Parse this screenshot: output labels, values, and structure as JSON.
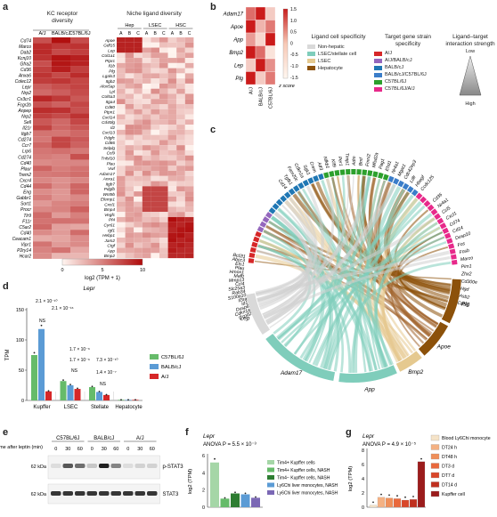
{
  "panel_a": {
    "letter": "a",
    "kc_title": "KC receptor diversity",
    "kc_strains": [
      "A/J",
      "BALB/cJ",
      "C57BL/6J"
    ],
    "kc_genes": [
      "Cd74",
      "Marco",
      "Dab2",
      "Kcnj10",
      "Gfra2",
      "Cd36",
      "Anxa6",
      "Colec12",
      "Lepr",
      "Nrp2",
      "Cx3cr1",
      "Fcgr2b",
      "Anpep",
      "Nrp2",
      "Sell",
      "Il21r",
      "Itgb7",
      "Cd274",
      "Ccr7",
      "Lrp6",
      "Cd274",
      "Cd40",
      "Plaur",
      "Trem2",
      "Cxcr4",
      "Cd44",
      "Eng",
      "Gabbr1",
      "Sort1",
      "Procr",
      "Tlr9",
      "F11r",
      "C5ar2",
      "Cd40",
      "Ceacam1",
      "Vipr1",
      "P2ry14",
      "Hcar2"
    ],
    "niche_title": "Niche ligand diversity",
    "niche_groups": [
      "Hep",
      "LSEC",
      "HSC"
    ],
    "niche_sub": [
      "A",
      "B",
      "C",
      "A",
      "B",
      "C",
      "A",
      "B",
      "C"
    ],
    "niche_genes": [
      "Apoe",
      "Gdf15",
      "Lep",
      "Col1a1",
      "Ptprc",
      "Il1b",
      "Plg",
      "Lgals3",
      "Itgb2",
      "Alox5ap",
      "Lpl",
      "Col5a3",
      "Itga4",
      "Cd80",
      "Ptpn1",
      "Cxcl14",
      "Cd40lg",
      "Il2",
      "Cxcl13",
      "Pdgfc",
      "Cd86",
      "Selplg",
      "Ccl9",
      "Tnfsf10",
      "Plau",
      "Vwf",
      "Adam17",
      "Anxa1",
      "Itgb7",
      "Pdgfb",
      "Wnt9b",
      "Efemp1",
      "Cxcl1",
      "Bmp4",
      "Vegfc",
      "Pf4",
      "Cyr61",
      "Igf1",
      "Hebp1",
      "Jam2",
      "Ctgf",
      "App",
      "Bmp2"
    ],
    "scale_ticks": [
      "0",
      "5",
      "10"
    ],
    "scale_label": "log2 (TPM + 1)"
  },
  "panel_b": {
    "letter": "b",
    "genes": [
      "Adam17",
      "Apoe",
      "App",
      "Bmp2",
      "Lep",
      "Plg"
    ],
    "strains": [
      "A/J",
      "BALB/cJ",
      "C57BL/6J"
    ],
    "colorbar_ticks": [
      "1.5",
      "1.0",
      "0.5",
      "0",
      "-0.5",
      "-1.0",
      "-1.5"
    ],
    "colorbar_label": "z score"
  },
  "legend_c": {
    "ligand_title": "Ligand cell specificity",
    "ligand_items": [
      {
        "label": "Non-hepatic",
        "color": "#d9d9d9"
      },
      {
        "label": "LSEC/stellate cell",
        "color": "#7fcdbb"
      },
      {
        "label": "LSEC",
        "color": "#e5c98f"
      },
      {
        "label": "Hepatocyte",
        "color": "#8c510a"
      }
    ],
    "target_title": "Target gene strain specificity",
    "target_items": [
      {
        "label": "A/J",
        "color": "#d62728"
      },
      {
        "label": "A/J/BALB/cJ",
        "color": "#9467bd"
      },
      {
        "label": "BALB/cJ",
        "color": "#1f77b4"
      },
      {
        "label": "BALB/cJ/C57BL/6J",
        "color": "#3a7dc9"
      },
      {
        "label": "C57BL/6J",
        "color": "#2ca02c"
      },
      {
        "label": "C57BL/6J/A/J",
        "color": "#e7298a"
      }
    ],
    "strength_title": "Ligand–target interaction strength",
    "strength_low": "Low",
    "strength_high": "High"
  },
  "panel_c": {
    "letter": "c",
    "ligands": [
      "Lep",
      "Adam17",
      "App",
      "Bmp2",
      "Apoe",
      "Plg"
    ],
    "targets_top": [
      "Cd14",
      "Tgfb1",
      "Fam20c",
      "Cdkn1a",
      "Sgk1",
      "Crem",
      "Atf3",
      "Nfkb1",
      "Klf9",
      "Per1",
      "Timp1",
      "Adm",
      "Bmf",
      "Fmnl2",
      "Mfsd2a",
      "Pag1",
      "Ehd1",
      "Nr4a1",
      "Mgat1",
      "Cdc42ep3",
      "Ldlr",
      "Hbegf",
      "Ccdc125"
    ],
    "targets_left": [
      "Bcl2l1",
      "Abcc3",
      "Ets1",
      "Plau",
      "Hmox1",
      "Mafb",
      "Mmp13",
      "Ccl4",
      "Slc25a3",
      "Rab34",
      "S100a10",
      "Il3ra",
      "Id1",
      "Dusp6",
      "Cdkn1a",
      "Ccnd2"
    ],
    "targets_right": [
      "Cd36",
      "Nr4a1",
      "Ccl5",
      "Cxcl1",
      "Cd74",
      "Cd14",
      "Dusp10",
      "Fos",
      "Fosb",
      "Marco",
      "Pim1",
      "Zhx2",
      "Cd300e",
      "Hgd",
      "Asb2",
      "Cd55"
    ]
  },
  "panel_d": {
    "letter": "d",
    "gene": "Lepr",
    "ylabel": "TPM",
    "yticks": [
      "0",
      "50",
      "100",
      "150"
    ],
    "categories": [
      "Kupffer",
      "LSEC",
      "Stellate",
      "Hepatocyte"
    ],
    "pvalues": [
      "2.1 × 10⁻¹⁰",
      "2.1 × 10⁻¹⁶",
      "NS",
      "1.7 × 10⁻⁶",
      "1.7 × 10⁻⁶",
      "NS",
      "7.3 × 10⁻¹⁰",
      "1.4 × 10⁻⁷",
      "NS"
    ],
    "legend": [
      "C57BL/6J",
      "BALB/cJ",
      "A/J"
    ]
  },
  "panel_e": {
    "letter": "e",
    "strains": [
      "C57BL/6J",
      "BALB/cJ",
      "A/J"
    ],
    "time_label": "Time after leptin (min)",
    "times": [
      "0",
      "30",
      "60",
      "0",
      "30",
      "60",
      "0",
      "30",
      "60"
    ],
    "bands": [
      "p-STAT3",
      "STAT3"
    ],
    "kda": [
      "62 kDa",
      "62 kDa"
    ]
  },
  "panel_f": {
    "letter": "f",
    "gene": "Lepr",
    "anova": "ANOVA P = 5.5 × 10⁻³",
    "ylabel": "log2 (TPM)",
    "yticks": [
      "0",
      "2",
      "4",
      "6"
    ],
    "legend": [
      "Tim4+ Kupffer cells",
      "Tim4+ Kupffer cells, NASH",
      "Tim4− Kupffer cells, NASH",
      "Ly6Chi liver monocytes, NASH",
      "Ly6Chi liver monocytes, NASH"
    ]
  },
  "panel_g": {
    "letter": "g",
    "gene": "Lepr",
    "anova": "ANOVA P = 4.9 × 10⁻⁵",
    "ylabel": "log2 (TPM)",
    "yticks": [
      "0",
      "2",
      "4",
      "6",
      "8"
    ],
    "legend": [
      "Blood Ly6Chi monocyte",
      "DT24 h",
      "DT48 h",
      "DT3 d",
      "DT7 d",
      "DT14 d",
      "Kupffer cell"
    ]
  },
  "chart_data": [
    {
      "type": "bar",
      "id": "d",
      "title": "Lepr",
      "ylabel": "TPM",
      "ylim": [
        0,
        150
      ],
      "categories": [
        "Kupffer",
        "LSEC",
        "Stellate",
        "Hepatocyte"
      ],
      "series": [
        {
          "name": "C57BL/6J",
          "values": [
            75,
            32,
            22,
            1
          ],
          "color": "#66bb6a"
        },
        {
          "name": "BALB/cJ",
          "values": [
            118,
            25,
            14,
            1
          ],
          "color": "#5b9bd5"
        },
        {
          "name": "A/J",
          "values": [
            15,
            19,
            9,
            1
          ],
          "color": "#d62728"
        }
      ]
    },
    {
      "type": "bar",
      "id": "f",
      "title": "Lepr",
      "ylabel": "log2 (TPM)",
      "ylim": [
        0,
        6
      ],
      "categories": [
        "1",
        "2",
        "3",
        "4",
        "5"
      ],
      "values": [
        5.2,
        1.0,
        1.6,
        1.5,
        1.1
      ],
      "colors": [
        "#a5d6a7",
        "#66bb6a",
        "#2e7d32",
        "#5b9bd5",
        "#7b68b5"
      ]
    },
    {
      "type": "bar",
      "id": "g",
      "title": "Lepr",
      "ylabel": "log2 (TPM)",
      "ylim": [
        0,
        8
      ],
      "categories": [
        "1",
        "2",
        "3",
        "4",
        "5",
        "6",
        "7"
      ],
      "values": [
        0.3,
        1.4,
        1.3,
        1.2,
        1.0,
        1.1,
        6.4
      ],
      "colors": [
        "#f5e3c8",
        "#f4b183",
        "#ef8f5a",
        "#e9683c",
        "#d9472a",
        "#c0301f",
        "#9b1c1c"
      ]
    }
  ]
}
